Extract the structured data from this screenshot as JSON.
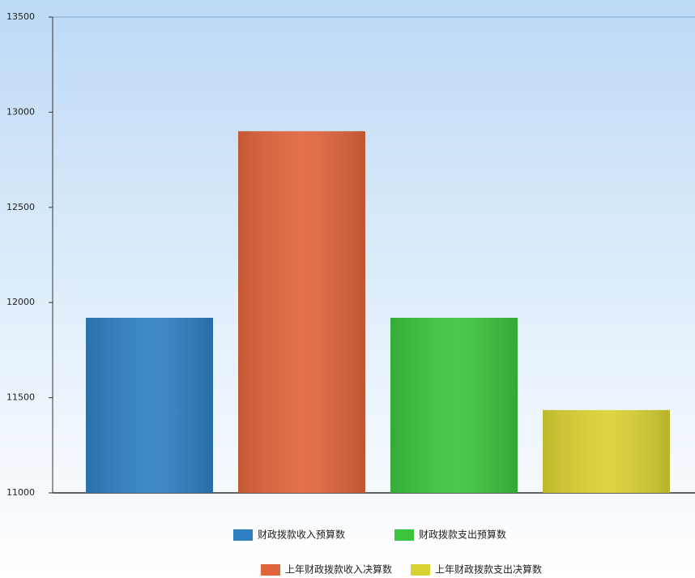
{
  "chart_data": {
    "type": "bar",
    "series": [
      {
        "name": "财政拨款收入预算数",
        "color": "#2f80c2",
        "values": [
          11920
        ]
      },
      {
        "name": "上年财政拨款收入决算数",
        "color": "#e0653c",
        "values": [
          12900
        ]
      },
      {
        "name": "财政拨款支出预算数",
        "color": "#3cc43c",
        "values": [
          11920
        ]
      },
      {
        "name": "上年财政拨款支出决算数",
        "color": "#d9d233",
        "values": [
          11435
        ]
      }
    ],
    "ylim": [
      11000,
      13500
    ],
    "yticks": [
      11000,
      11500,
      12000,
      12500,
      13000,
      13500
    ],
    "grid": false,
    "legend": "bottom"
  }
}
